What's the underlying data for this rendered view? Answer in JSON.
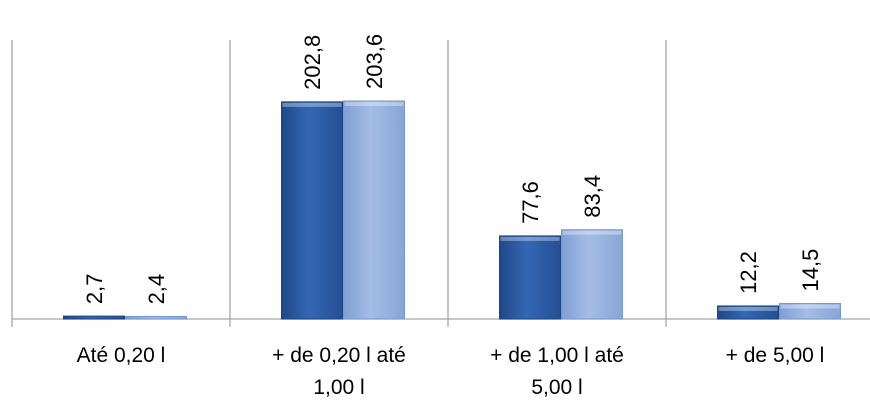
{
  "chart_data": {
    "type": "bar",
    "categories": [
      [
        "Até 0,20 l"
      ],
      [
        "+ de 0,20 l até",
        "1,00 l"
      ],
      [
        "+ de 1,00 l até",
        "5,00 l"
      ],
      [
        "+ de 5,00 l"
      ]
    ],
    "series": [
      {
        "values": [
          2.7,
          202.8,
          77.6,
          12.2
        ],
        "labels": [
          "2,7",
          "202,8",
          "77,6",
          "12,2"
        ],
        "color": "#2f5ea8"
      },
      {
        "values": [
          2.4,
          203.6,
          83.4,
          14.5
        ],
        "labels": [
          "2,4",
          "203,6",
          "83,4",
          "14,5"
        ],
        "color": "#95b1df"
      }
    ],
    "xlabel": "",
    "ylabel": "",
    "ylim": [
      0,
      210
    ],
    "grid": false,
    "legend": "none",
    "axis_color": "#a6a6a6"
  }
}
